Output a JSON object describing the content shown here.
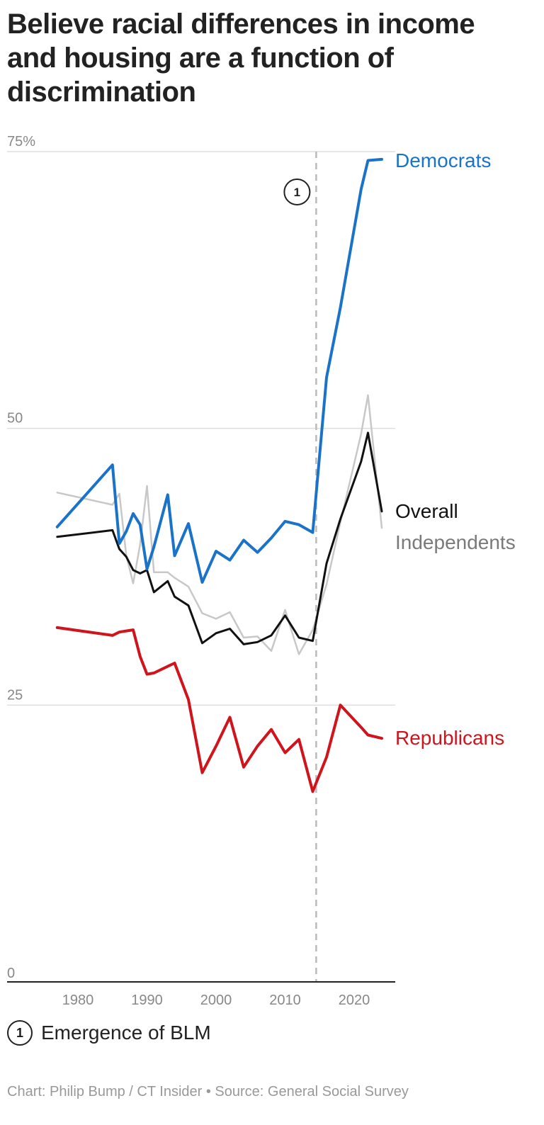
{
  "title": "Believe racial differences in income and housing are a function of discrimination",
  "annotation": {
    "number": "1",
    "label": "Emergence of BLM",
    "year": 2014.5
  },
  "credit": "Chart: Philip Bump / CT Insider • Source: General Social Survey",
  "colors": {
    "democrats": "#1a73c8",
    "republicans": "#d0141c",
    "overall": "#111111",
    "independents": "#c8c8c8",
    "independents_label": "#7a7a7a",
    "grid": "#dddddd",
    "axis": "#222222",
    "annotation_line": "#bbbbbb"
  },
  "chart_data": {
    "type": "line",
    "title": "Believe racial differences in income and housing are a function of discrimination",
    "xlabel": "",
    "ylabel": "",
    "xlim": [
      1977,
      2024
    ],
    "ylim": [
      0,
      75
    ],
    "grid": true,
    "x_ticks": [
      1980,
      1990,
      2000,
      2010,
      2020
    ],
    "y_ticks": [
      {
        "value": 0,
        "label": "0"
      },
      {
        "value": 25,
        "label": "25"
      },
      {
        "value": 50,
        "label": "50"
      },
      {
        "value": 75,
        "label": "75%"
      }
    ],
    "series": [
      {
        "name": "Independents",
        "key": "independents",
        "label_color_key": "independents_label",
        "x": [
          1977,
          1985,
          1986,
          1987,
          1988,
          1989,
          1990,
          1991,
          1993,
          1994,
          1996,
          1998,
          2000,
          2002,
          2004,
          2006,
          2008,
          2010,
          2012,
          2014,
          2016,
          2018,
          2021,
          2022,
          2024
        ],
        "y": [
          44.2,
          43.1,
          44.1,
          38.5,
          36,
          39.5,
          44.8,
          37,
          37,
          36.5,
          35.7,
          33.3,
          32.8,
          33.4,
          31.1,
          31.2,
          29.9,
          33.6,
          29.6,
          31.8,
          35.9,
          41.5,
          49.5,
          53,
          41
        ]
      },
      {
        "name": "Overall",
        "key": "overall",
        "label_color_key": "overall",
        "x": [
          1977,
          1985,
          1986,
          1987,
          1988,
          1989,
          1990,
          1991,
          1993,
          1994,
          1996,
          1998,
          2000,
          2002,
          2004,
          2006,
          2008,
          2010,
          2012,
          2014,
          2016,
          2018,
          2021,
          2022,
          2024
        ],
        "y": [
          40.2,
          40.8,
          39.1,
          38.4,
          37.2,
          36.9,
          37.2,
          35.2,
          36.2,
          34.8,
          34,
          30.6,
          31.5,
          31.9,
          30.5,
          30.7,
          31.3,
          33.1,
          31.1,
          30.8,
          37.8,
          41.8,
          47,
          49.6,
          42.5
        ]
      },
      {
        "name": "Democrats",
        "key": "democrats",
        "label_color_key": "democrats",
        "x": [
          1977,
          1985,
          1986,
          1987,
          1988,
          1989,
          1990,
          1991,
          1993,
          1994,
          1996,
          1998,
          2000,
          2002,
          2004,
          2006,
          2008,
          2010,
          2012,
          2014,
          2016,
          2018,
          2021,
          2022,
          2024
        ],
        "y": [
          41.1,
          46.7,
          39.6,
          40.7,
          42.3,
          41.3,
          37.3,
          39.3,
          44,
          38.5,
          41.4,
          36.1,
          38.9,
          38.1,
          39.9,
          38.8,
          40.1,
          41.6,
          41.3,
          40.6,
          54.6,
          60.9,
          71.6,
          74.2,
          74.3
        ]
      },
      {
        "name": "Republicans",
        "key": "republicans",
        "label_color_key": "republicans",
        "x": [
          1977,
          1985,
          1986,
          1987,
          1988,
          1989,
          1990,
          1991,
          1993,
          1994,
          1996,
          1998,
          2000,
          2002,
          2004,
          2006,
          2008,
          2010,
          2012,
          2014,
          2016,
          2018,
          2021,
          2022,
          2024
        ],
        "y": [
          32,
          31.3,
          31.6,
          31.7,
          31.8,
          29.4,
          27.8,
          27.9,
          28.5,
          28.8,
          25.5,
          18.9,
          21.3,
          23.9,
          19.4,
          21.3,
          22.8,
          20.7,
          21.9,
          17.2,
          20.3,
          25,
          23,
          22.3,
          22
        ]
      }
    ]
  }
}
